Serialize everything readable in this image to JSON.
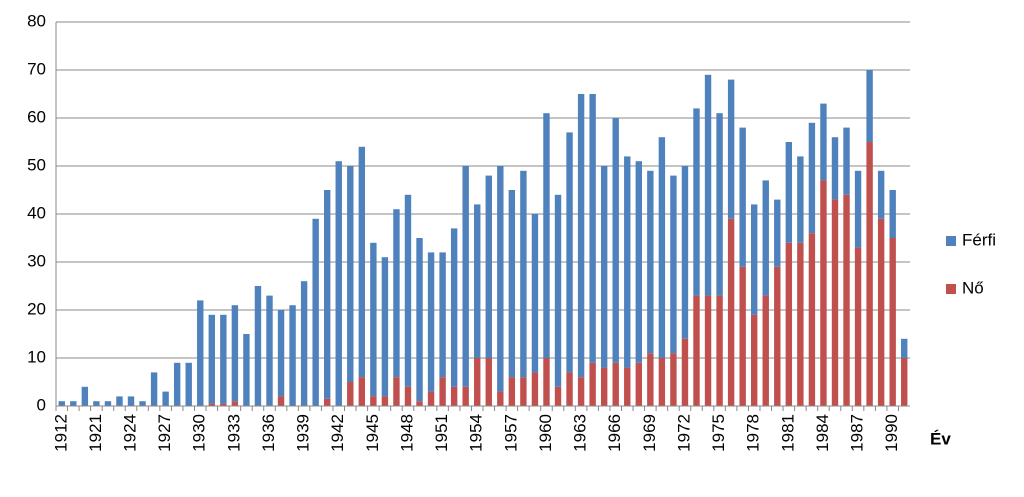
{
  "chart_data": {
    "type": "stacked_bar",
    "x_label": "Év",
    "categories": [
      "1912",
      null,
      null,
      "1921",
      null,
      null,
      "1924",
      null,
      null,
      "1927",
      null,
      null,
      "1930",
      null,
      null,
      "1933",
      null,
      null,
      "1936",
      null,
      null,
      "1939",
      null,
      null,
      "1942",
      null,
      null,
      "1945",
      null,
      null,
      "1948",
      null,
      null,
      "1951",
      null,
      null,
      "1954",
      null,
      null,
      "1957",
      null,
      null,
      "1960",
      null,
      null,
      "1963",
      null,
      null,
      "1966",
      null,
      null,
      "1969",
      null,
      null,
      "1972",
      null,
      null,
      "1975",
      null,
      null,
      "1978",
      null,
      null,
      "1981",
      null,
      null,
      "1984",
      null,
      null,
      "1987",
      null,
      null,
      "1990",
      null
    ],
    "series": [
      {
        "name": "Nő",
        "color": "#c0504d",
        "values": [
          0,
          0,
          0,
          0,
          0,
          0,
          0,
          0,
          0,
          0,
          0,
          0,
          0,
          0.5,
          0.5,
          1,
          0,
          0,
          0,
          2,
          0,
          0,
          0,
          1.5,
          0,
          5,
          6,
          2,
          2,
          6,
          4,
          1,
          3,
          6,
          4,
          4,
          10,
          10,
          3,
          6,
          6,
          7,
          10,
          4,
          7,
          6,
          9,
          8,
          9,
          8,
          9,
          11,
          10,
          11,
          14,
          23,
          23,
          23,
          39,
          29,
          19,
          23,
          29,
          34,
          34,
          36,
          47,
          43,
          44,
          33,
          55,
          39,
          35,
          10
        ]
      },
      {
        "name": "Férfi",
        "color": "#4f81bd",
        "values": [
          1,
          1,
          4,
          1,
          1,
          2,
          2,
          1,
          7,
          3,
          9,
          9,
          22,
          18.5,
          18.5,
          20,
          15,
          25,
          23,
          18,
          21,
          26,
          39,
          43.5,
          51,
          45,
          48,
          32,
          29,
          35,
          40,
          34,
          29,
          26,
          33,
          46,
          32,
          38,
          47,
          39,
          43,
          33,
          51,
          40,
          50,
          59,
          56,
          42,
          51,
          44,
          42,
          38,
          46,
          37,
          36,
          39,
          46,
          38,
          29,
          29,
          23,
          24,
          14,
          21,
          18,
          23,
          16,
          13,
          14,
          16,
          15,
          10,
          10,
          4
        ]
      }
    ],
    "ylim": [
      0,
      80
    ],
    "yticks": [
      0,
      10,
      20,
      30,
      40,
      50,
      60,
      70,
      80
    ],
    "grid": true,
    "legend": "right"
  }
}
